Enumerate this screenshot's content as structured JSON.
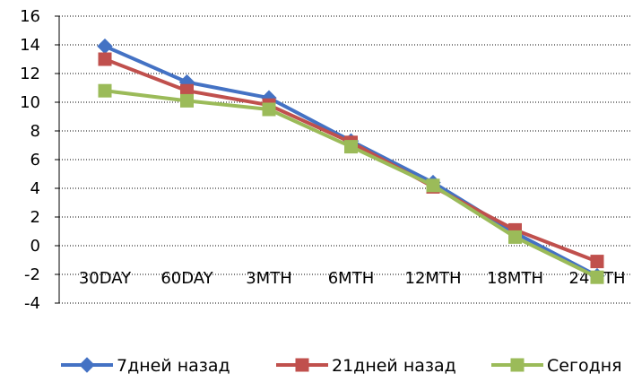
{
  "chart_data": {
    "type": "line",
    "categories": [
      "30DAY",
      "60DAY",
      "3MTH",
      "6MTH",
      "12MTH",
      "18MTH",
      "24MTH"
    ],
    "series": [
      {
        "name": "7дней назад",
        "color": "#4472C4",
        "marker": "diamond",
        "values": [
          13.9,
          11.4,
          10.3,
          7.3,
          4.4,
          0.9,
          -2.1
        ]
      },
      {
        "name": "21дней назад",
        "color": "#C0504D",
        "marker": "square",
        "values": [
          13.0,
          10.8,
          9.8,
          7.2,
          4.1,
          1.1,
          -1.1
        ]
      },
      {
        "name": "Сегодня",
        "color": "#9BBB59",
        "marker": "square",
        "values": [
          10.8,
          10.1,
          9.5,
          6.9,
          4.2,
          0.6,
          -2.2
        ]
      }
    ],
    "ylim": [
      -4,
      16
    ],
    "ytick_step": 2,
    "grid": true,
    "legend_position": "bottom"
  }
}
